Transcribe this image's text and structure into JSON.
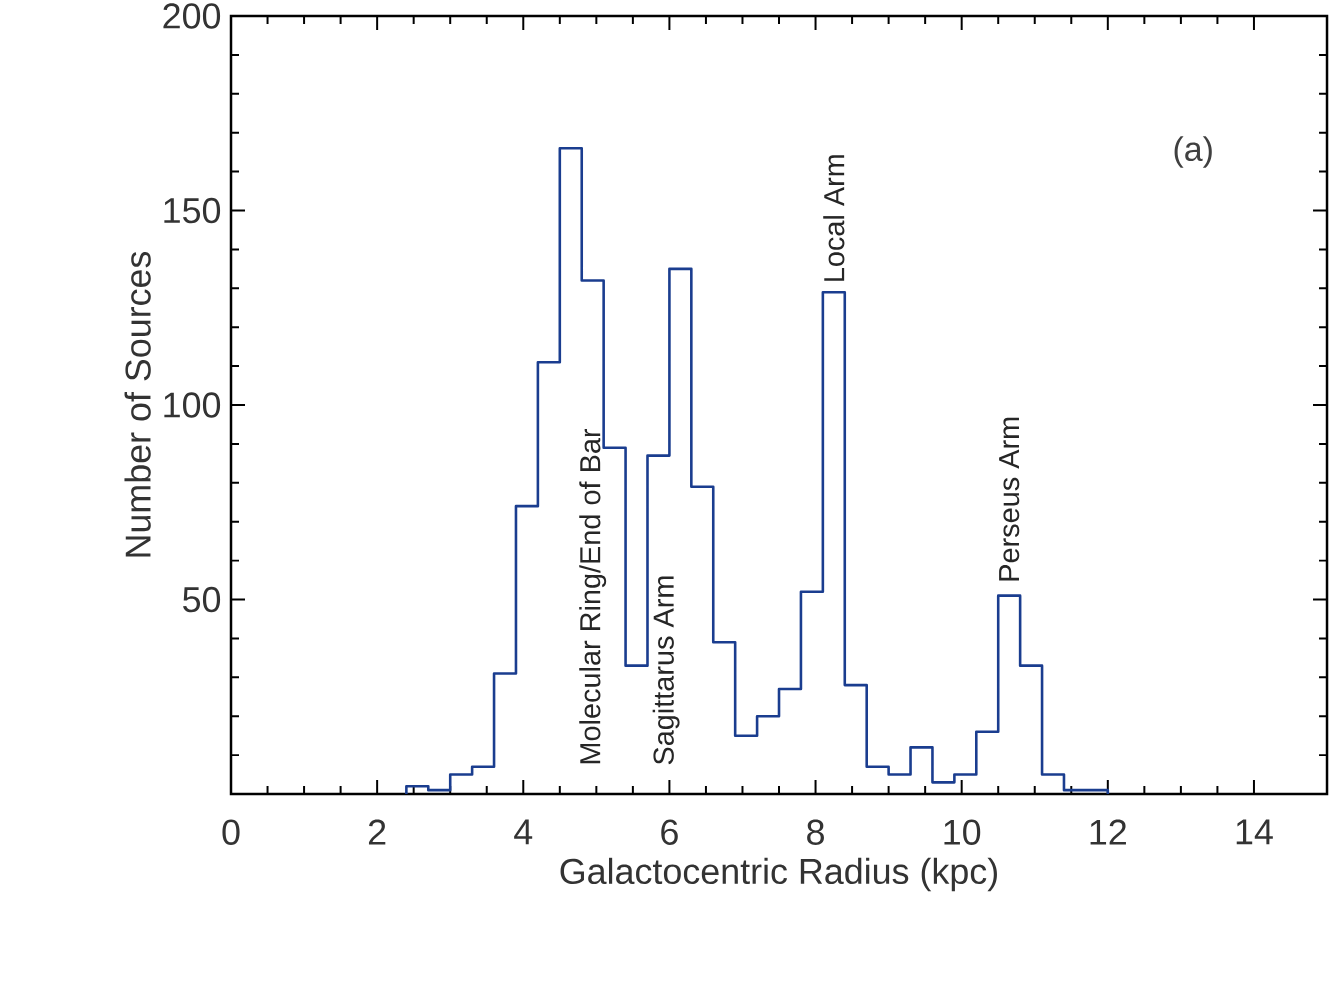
{
  "chart_data": {
    "type": "histogram",
    "xlabel": "Galactocentric Radius (kpc)",
    "ylabel": "Number of Sources",
    "bins": [
      2.4,
      2.7,
      3.0,
      3.3,
      3.6,
      3.9,
      4.2,
      4.5,
      4.8,
      5.1,
      5.4,
      5.7,
      6.0,
      6.3,
      6.6,
      6.9,
      7.2,
      7.5,
      7.8,
      8.1,
      8.4,
      8.7,
      9.0,
      9.3,
      9.6,
      9.9,
      10.2,
      10.5,
      10.8,
      11.1,
      11.4,
      11.7,
      12.0
    ],
    "values": [
      2,
      1,
      5,
      7,
      31,
      74,
      111,
      166,
      132,
      89,
      33,
      87,
      135,
      79,
      39,
      15,
      20,
      27,
      52,
      129,
      28,
      7,
      5,
      12,
      3,
      5,
      16,
      51,
      33,
      5,
      1,
      1
    ],
    "color": "#1a3d8f",
    "xlim": [
      0,
      15
    ],
    "ylim": [
      0,
      200
    ],
    "xticks": [
      0,
      2,
      4,
      6,
      8,
      10,
      12,
      14
    ],
    "yticks": [
      {
        "value": 0,
        "label": null
      },
      50,
      100,
      150,
      200
    ],
    "annotations": [
      "Molecular Ring/End of Bar",
      "Sagittarus Arm",
      "Local Arm",
      "Perseus Arm",
      "(a)"
    ]
  }
}
